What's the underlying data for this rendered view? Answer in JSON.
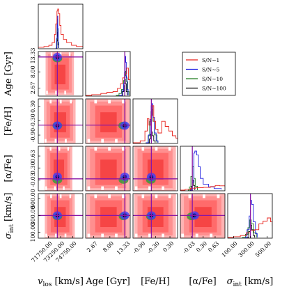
{
  "chart_data": {
    "type": "corner",
    "parameters": [
      {
        "key": "vlos",
        "label": "v_los [km/s]",
        "label_main": "v",
        "label_sub": "los",
        "label_unit": " [km/s]",
        "range": [
          70500,
          76000
        ],
        "ticks": [
          71750,
          73250,
          74750
        ],
        "tick_labels": [
          "71750.00",
          "73250.00",
          "74750.00"
        ],
        "truth": 72850
      },
      {
        "key": "age",
        "label": "Age [Gyr]",
        "range": [
          0,
          14.7
        ],
        "ticks": [
          2.67,
          8.0,
          13.33
        ],
        "tick_labels": [
          "2.67",
          "8.00",
          "13.33"
        ],
        "truth": 12.9
      },
      {
        "key": "feh",
        "label": "[Fe/H]",
        "range": [
          -1.25,
          0.62
        ],
        "ticks": [
          -0.9,
          -0.3,
          0.3
        ],
        "tick_labels": [
          "-0.90",
          "-0.30",
          "0.30"
        ],
        "truth": -0.48
      },
      {
        "key": "afe",
        "label": "[α/Fe]",
        "range": [
          -0.33,
          0.9
        ],
        "ticks": [
          -0.03,
          0.3,
          0.63
        ],
        "tick_labels": [
          "-0.03",
          "0.30",
          "0.63"
        ],
        "truth": 0.0
      },
      {
        "key": "sigma",
        "label": "σ_int [km/s]",
        "label_main": "σ",
        "label_sub": "int",
        "label_unit": " [km/s]",
        "range": [
          30,
          560
        ],
        "ticks": [
          100,
          300,
          500
        ],
        "tick_labels": [
          "100.00",
          "300.00",
          "500.00"
        ],
        "truth": 300
      }
    ],
    "series": [
      {
        "name": "S/N∼1",
        "color": "#e8211a"
      },
      {
        "name": "S/N∼5",
        "color": "#1c1ce0"
      },
      {
        "name": "S/N∼10",
        "color": "#1e7a1e"
      },
      {
        "name": "S/N∼100",
        "color": "#000000"
      }
    ],
    "truth_line_color": "#8a17a6",
    "legend_position": "upper-right",
    "histograms": {
      "vlos": {
        "S/N∼1": [
          [
            70500,
            0.02
          ],
          [
            71200,
            0.04
          ],
          [
            71800,
            0.07
          ],
          [
            72200,
            0.14
          ],
          [
            72500,
            0.35
          ],
          [
            72650,
            0.62
          ],
          [
            72800,
            0.95
          ],
          [
            72900,
            1.0
          ],
          [
            73000,
            0.88
          ],
          [
            73150,
            0.58
          ],
          [
            73300,
            0.35
          ],
          [
            73600,
            0.22
          ],
          [
            74000,
            0.14
          ],
          [
            74600,
            0.07
          ],
          [
            75200,
            0.04
          ],
          [
            76000,
            0.02
          ]
        ],
        "S/N∼5": [
          [
            72650,
            0
          ],
          [
            72760,
            0.25
          ],
          [
            72830,
            0.68
          ],
          [
            72870,
            0.82
          ],
          [
            72910,
            0.5
          ],
          [
            72960,
            0.15
          ],
          [
            73020,
            0
          ]
        ],
        "S/N∼10": [
          [
            72640,
            0
          ],
          [
            72750,
            0.22
          ],
          [
            72820,
            0.6
          ],
          [
            72860,
            0.74
          ],
          [
            72900,
            0.42
          ],
          [
            72950,
            0.12
          ],
          [
            73010,
            0
          ]
        ],
        "S/N∼100": [
          [
            72700,
            0
          ],
          [
            72800,
            0.18
          ],
          [
            72850,
            0.46
          ],
          [
            72890,
            0.3
          ],
          [
            72930,
            0.08
          ],
          [
            72980,
            0
          ]
        ]
      },
      "age": {
        "S/N∼1": [
          [
            0,
            0
          ],
          [
            2,
            0.02
          ],
          [
            5,
            0.05
          ],
          [
            7,
            0.08
          ],
          [
            9,
            0.1
          ],
          [
            10.5,
            0.18
          ],
          [
            11.5,
            0.3
          ],
          [
            12.2,
            0.45
          ],
          [
            13,
            0.55
          ],
          [
            13.5,
            0.7
          ],
          [
            14.1,
            0.4
          ],
          [
            14.7,
            0.1
          ]
        ],
        "S/N∼5": [
          [
            11,
            0
          ],
          [
            12,
            0.12
          ],
          [
            12.5,
            0.3
          ],
          [
            12.8,
            0.6
          ],
          [
            13.0,
            1.0
          ],
          [
            13.2,
            0.85
          ],
          [
            13.4,
            0.45
          ],
          [
            13.7,
            0.15
          ],
          [
            14.0,
            0
          ]
        ],
        "S/N∼10": [
          [
            10,
            0
          ],
          [
            11,
            0.05
          ],
          [
            11.8,
            0.15
          ],
          [
            12.5,
            0.38
          ],
          [
            12.9,
            0.62
          ],
          [
            13.2,
            0.5
          ],
          [
            13.5,
            0.35
          ],
          [
            13.9,
            0.1
          ],
          [
            14.3,
            0
          ]
        ],
        "S/N∼100": [
          [
            11.5,
            0
          ],
          [
            12.2,
            0.1
          ],
          [
            12.6,
            0.25
          ],
          [
            12.9,
            0.42
          ],
          [
            13.1,
            0.3
          ],
          [
            13.4,
            0.1
          ],
          [
            13.7,
            0
          ]
        ]
      },
      "feh": {
        "S/N∼1": [
          [
            -1.25,
            0
          ],
          [
            -0.95,
            0.05
          ],
          [
            -0.75,
            0.3
          ],
          [
            -0.65,
            0.62
          ],
          [
            -0.58,
            0.45
          ],
          [
            -0.5,
            0.7
          ],
          [
            -0.45,
            0.95
          ],
          [
            -0.38,
            0.55
          ],
          [
            -0.3,
            0.35
          ],
          [
            -0.2,
            0.25
          ],
          [
            -0.05,
            0.55
          ],
          [
            0.1,
            0.42
          ],
          [
            0.25,
            0.3
          ],
          [
            0.4,
            0.18
          ],
          [
            0.55,
            0.12
          ],
          [
            0.62,
            0.1
          ]
        ],
        "S/N∼5": [
          [
            -0.7,
            0
          ],
          [
            -0.6,
            0.2
          ],
          [
            -0.53,
            0.6
          ],
          [
            -0.49,
            0.95
          ],
          [
            -0.46,
            1.0
          ],
          [
            -0.42,
            0.65
          ],
          [
            -0.35,
            0.25
          ],
          [
            -0.28,
            0.05
          ],
          [
            -0.2,
            0
          ]
        ],
        "S/N∼10": [
          [
            -0.72,
            0
          ],
          [
            -0.62,
            0.18
          ],
          [
            -0.55,
            0.55
          ],
          [
            -0.5,
            0.8
          ],
          [
            -0.46,
            0.85
          ],
          [
            -0.42,
            0.55
          ],
          [
            -0.35,
            0.2
          ],
          [
            -0.25,
            0
          ]
        ],
        "S/N∼100": [
          [
            -0.62,
            0
          ],
          [
            -0.56,
            0.1
          ],
          [
            -0.51,
            0.22
          ],
          [
            -0.48,
            0.28
          ],
          [
            -0.44,
            0.18
          ],
          [
            -0.38,
            0.05
          ],
          [
            -0.32,
            0
          ]
        ]
      },
      "afe": {
        "S/N∼1": [
          [
            -0.33,
            0
          ],
          [
            -0.2,
            0.02
          ],
          [
            -0.05,
            0.05
          ],
          [
            0.1,
            0.06
          ],
          [
            0.3,
            0.07
          ],
          [
            0.5,
            0.09
          ],
          [
            0.63,
            0.12
          ],
          [
            0.75,
            0.11
          ],
          [
            0.9,
            0.09
          ]
        ],
        "S/N∼5": [
          [
            -0.05,
            0
          ],
          [
            0.0,
            0.2
          ],
          [
            0.04,
            0.95
          ],
          [
            0.07,
            1.0
          ],
          [
            0.12,
            0.9
          ],
          [
            0.17,
            0.6
          ],
          [
            0.22,
            0.3
          ],
          [
            0.3,
            0.15
          ],
          [
            0.45,
            0.08
          ],
          [
            0.6,
            0.04
          ],
          [
            0.8,
            0.02
          ]
        ],
        "S/N∼10": [
          [
            -0.12,
            0
          ],
          [
            -0.08,
            0.08
          ],
          [
            -0.04,
            0.35
          ],
          [
            0.0,
            0.6
          ],
          [
            0.04,
            0.3
          ],
          [
            0.08,
            0.1
          ],
          [
            0.14,
            0
          ]
        ],
        "S/N∼100": [
          [
            -0.06,
            0
          ],
          [
            -0.03,
            0.1
          ],
          [
            0.0,
            0.25
          ],
          [
            0.03,
            0.12
          ],
          [
            0.07,
            0
          ]
        ]
      },
      "sigma": {
        "S/N∼1": [
          [
            30,
            0
          ],
          [
            100,
            0.02
          ],
          [
            180,
            0.05
          ],
          [
            250,
            0.12
          ],
          [
            300,
            0.18
          ],
          [
            350,
            0.2
          ],
          [
            400,
            0.35
          ],
          [
            450,
            0.42
          ],
          [
            500,
            0.5
          ],
          [
            540,
            0.4
          ],
          [
            560,
            0.3
          ]
        ],
        "S/N∼5": [
          [
            230,
            0
          ],
          [
            260,
            0.2
          ],
          [
            285,
            0.55
          ],
          [
            300,
            0.95
          ],
          [
            315,
            0.85
          ],
          [
            335,
            0.4
          ],
          [
            360,
            0.1
          ],
          [
            380,
            0
          ]
        ],
        "S/N∼10": [
          [
            200,
            0
          ],
          [
            240,
            0.08
          ],
          [
            270,
            0.25
          ],
          [
            290,
            0.45
          ],
          [
            310,
            0.35
          ],
          [
            340,
            0.12
          ],
          [
            370,
            0
          ]
        ],
        "S/N∼100": [
          [
            255,
            0
          ],
          [
            280,
            0.15
          ],
          [
            298,
            0.32
          ],
          [
            315,
            0.2
          ],
          [
            335,
            0.05
          ],
          [
            350,
            0
          ]
        ]
      }
    },
    "posterior_clouds": [
      {
        "row": "age",
        "col": "vlos",
        "red": [
          71400,
          0.3,
          74900,
          14.7
        ],
        "blue": [
          72850,
          12.9
        ],
        "green": [
          72850,
          12.4
        ]
      },
      {
        "row": "feh",
        "col": "vlos",
        "red": [
          71200,
          -1.25,
          75100,
          0.62
        ],
        "blue": [
          72850,
          -0.5
        ],
        "green": [
          72850,
          -0.5
        ]
      },
      {
        "row": "afe",
        "col": "vlos",
        "red": [
          71300,
          -0.33,
          74700,
          0.9
        ],
        "blue": [
          72850,
          0.06
        ],
        "green": [
          72850,
          -0.03
        ]
      },
      {
        "row": "sigma",
        "col": "vlos",
        "red": [
          71300,
          30,
          75000,
          560
        ],
        "blue": [
          72850,
          300
        ],
        "green": [
          72850,
          290
        ]
      },
      {
        "row": "feh",
        "col": "age",
        "red": [
          0.3,
          -1.25,
          14.5,
          0.62
        ],
        "blue": [
          12.9,
          -0.5
        ],
        "green": [
          12.4,
          -0.5
        ]
      },
      {
        "row": "afe",
        "col": "age",
        "red": [
          0.3,
          -0.33,
          14.5,
          0.9
        ],
        "blue": [
          12.9,
          0.06
        ],
        "green": [
          12.5,
          -0.03
        ]
      },
      {
        "row": "sigma",
        "col": "age",
        "red": [
          0.3,
          30,
          14.5,
          560
        ],
        "blue": [
          12.9,
          300
        ],
        "green": [
          12.5,
          290
        ]
      },
      {
        "row": "afe",
        "col": "feh",
        "red": [
          -1.2,
          -0.33,
          0.55,
          0.9
        ],
        "blue": [
          -0.48,
          0.05
        ],
        "green": [
          -0.5,
          -0.03
        ]
      },
      {
        "row": "sigma",
        "col": "feh",
        "red": [
          -1.2,
          30,
          0.55,
          560
        ],
        "blue": [
          -0.48,
          300
        ],
        "green": [
          -0.5,
          290
        ]
      },
      {
        "row": "sigma",
        "col": "afe",
        "red": [
          -0.33,
          30,
          0.9,
          560
        ],
        "blue": [
          0.06,
          300
        ],
        "green": [
          -0.02,
          290
        ]
      }
    ]
  }
}
